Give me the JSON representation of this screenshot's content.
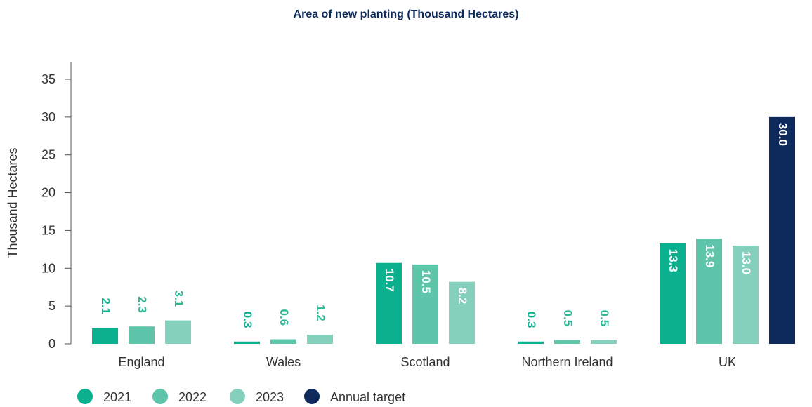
{
  "chart_data": {
    "type": "bar",
    "title": "Area of new planting (Thousand Hectares)",
    "ylabel": "Thousand Hectares",
    "xlabel": "",
    "ylim": [
      0,
      35
    ],
    "yticks": [
      "0",
      "5",
      "10",
      "15",
      "20",
      "25",
      "30",
      "35"
    ],
    "categories": [
      "England",
      "Wales",
      "Scotland",
      "Northern Ireland",
      "UK"
    ],
    "series": [
      {
        "name": "2021",
        "color": "#0bb18f",
        "values": [
          2.1,
          0.3,
          10.7,
          0.3,
          13.3
        ],
        "labels": [
          "2.1",
          "0.3",
          "10.7",
          "0.3",
          "13.3"
        ]
      },
      {
        "name": "2022",
        "color": "#5ec4aa",
        "values": [
          2.3,
          0.6,
          10.5,
          0.5,
          13.9
        ],
        "labels": [
          "2.3",
          "0.6",
          "10.5",
          "0.5",
          "13.9"
        ]
      },
      {
        "name": "2023",
        "color": "#84d0bd",
        "values": [
          3.1,
          1.2,
          8.2,
          0.5,
          13.0
        ],
        "labels": [
          "3.1",
          "1.2",
          "8.2",
          "0.5",
          "13.0"
        ]
      },
      {
        "name": "Annual target",
        "color": "#0e2a5c",
        "values": [
          null,
          null,
          null,
          null,
          30.0
        ],
        "labels": [
          "",
          "",
          "",
          "",
          "30.0"
        ]
      }
    ],
    "grid": false,
    "legend_position": "bottom-left"
  }
}
